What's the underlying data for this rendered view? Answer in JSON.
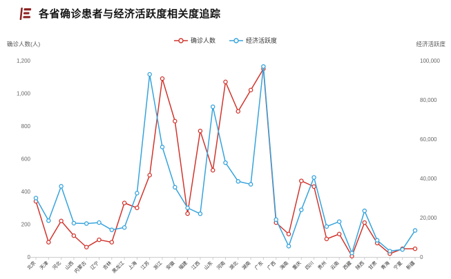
{
  "header": {
    "logo": "flag-bars-icon"
  },
  "axes": {
    "left_title": "确诊人数(人)",
    "right_title": "经济活跃度",
    "left_ticks": [
      "0",
      "200",
      "400",
      "600",
      "800",
      "1,000",
      "1,200"
    ],
    "right_ticks": [
      "0",
      "20,000",
      "40,000",
      "60,000",
      "80,000",
      "100,000"
    ]
  },
  "chart_data": {
    "type": "line",
    "title": "各省确诊患者与经济活跃度相关度追踪",
    "grid": false,
    "legend_position": "top",
    "x_label_rotate": 45,
    "categories": [
      "北京",
      "天津",
      "河北",
      "山西",
      "内蒙古",
      "辽宁",
      "吉林",
      "黑龙江",
      "上海",
      "江苏",
      "浙江",
      "安徽",
      "福建",
      "江西",
      "山东",
      "河南",
      "湖北",
      "湖南",
      "广东",
      "广西",
      "海南",
      "重庆",
      "四川",
      "贵州",
      "云南",
      "西藏",
      "陕西",
      "甘肃",
      "青海",
      "宁夏",
      "新疆"
    ],
    "y_left": {
      "label": "确诊人数(人)",
      "min": 0,
      "max": 1200
    },
    "y_right": {
      "label": "经济活跃度",
      "min": 0,
      "max": 100000
    },
    "series": [
      {
        "name": "确诊人数",
        "axis": "left",
        "color": "#d0342c",
        "marker": "circle",
        "values": [
          340,
          90,
          220,
          130,
          60,
          105,
          90,
          330,
          300,
          500,
          1090,
          830,
          265,
          770,
          530,
          1070,
          890,
          1020,
          1150,
          210,
          140,
          465,
          430,
          110,
          140,
          5,
          210,
          85,
          20,
          50,
          50
        ]
      },
      {
        "name": "经济活跃度",
        "axis": "right",
        "color": "#35a3dc",
        "marker": "circle",
        "values": [
          30000,
          18500,
          36000,
          17200,
          17000,
          17500,
          13800,
          15000,
          32500,
          93000,
          56000,
          35500,
          25000,
          22000,
          76500,
          48000,
          38500,
          37000,
          97000,
          19000,
          5500,
          24000,
          40500,
          15500,
          18000,
          2000,
          23500,
          8500,
          3000,
          3800,
          13500
        ]
      }
    ]
  }
}
